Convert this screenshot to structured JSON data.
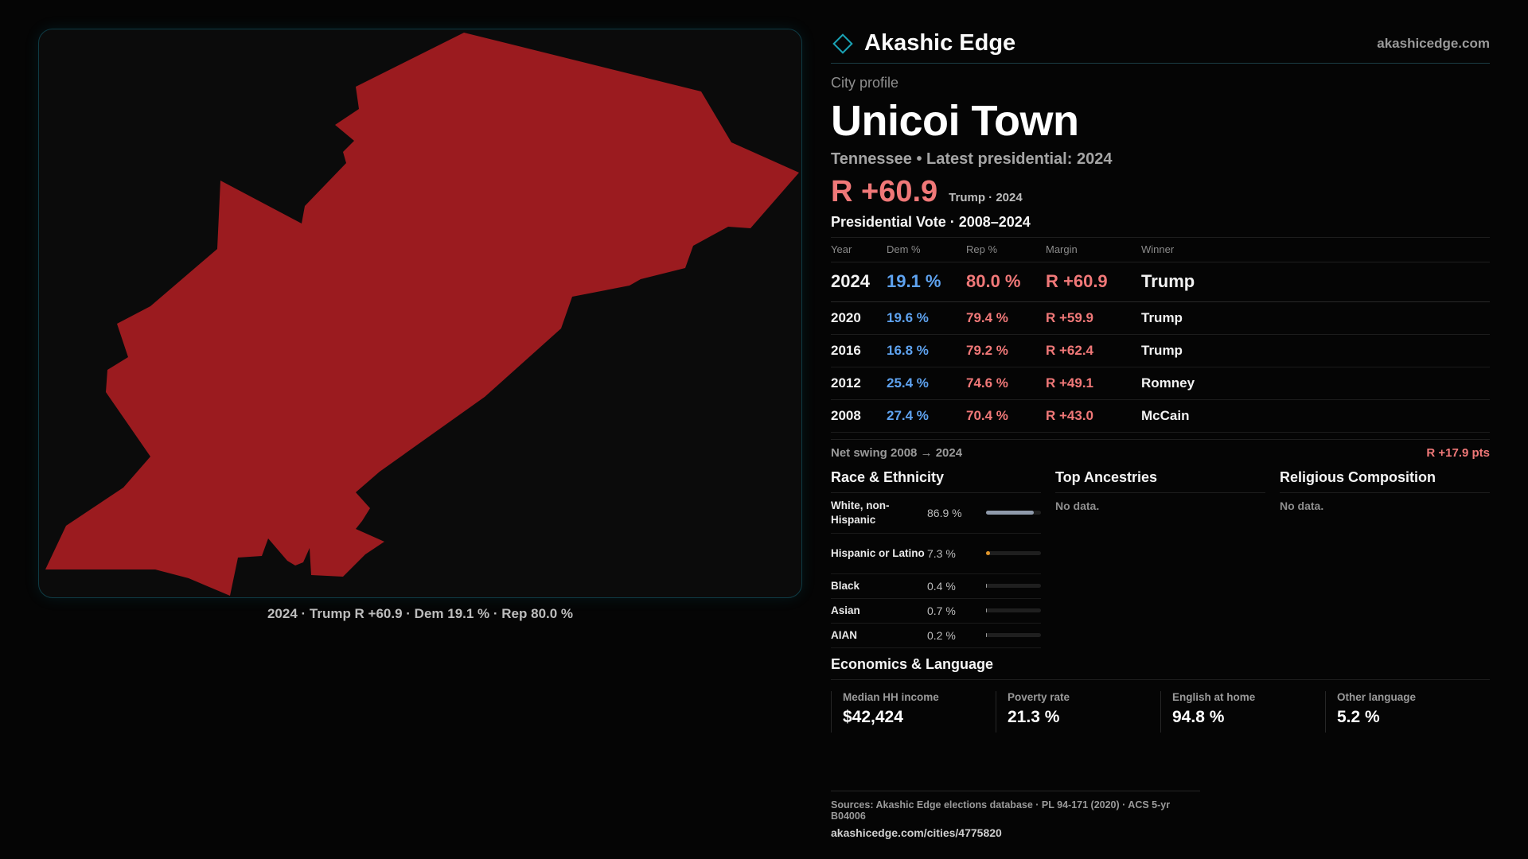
{
  "brand": {
    "name": "Akashic Edge",
    "url": "akashicedge.com",
    "icon": "diamond-icon",
    "accent": "#1aa3b5"
  },
  "map": {
    "caption": "2024 · Trump R +60.9 · Dem 19.1 % · Rep 80.0 %",
    "fill_color": "#9b1b1f"
  },
  "profile": {
    "eyebrow": "City profile",
    "name": "Unicoi Town",
    "subtitle": "Tennessee • Latest presidential: 2024",
    "headline_margin": "R +60.9",
    "headline_note": "Trump · 2024"
  },
  "votes": {
    "title": "Presidential Vote · 2008–2024",
    "headers": {
      "year": "Year",
      "dem": "Dem %",
      "rep": "Rep %",
      "margin": "Margin",
      "winner": "Winner"
    },
    "rows": [
      {
        "year": "2024",
        "dem": "19.1 %",
        "rep": "80.0 %",
        "margin": "R +60.9",
        "winner": "Trump"
      },
      {
        "year": "2020",
        "dem": "19.6 %",
        "rep": "79.4 %",
        "margin": "R +59.9",
        "winner": "Trump"
      },
      {
        "year": "2016",
        "dem": "16.8 %",
        "rep": "79.2 %",
        "margin": "R +62.4",
        "winner": "Trump"
      },
      {
        "year": "2012",
        "dem": "25.4 %",
        "rep": "74.6 %",
        "margin": "R +49.1",
        "winner": "Romney"
      },
      {
        "year": "2008",
        "dem": "27.4 %",
        "rep": "70.4 %",
        "margin": "R +43.0",
        "winner": "McCain"
      }
    ],
    "swing_label": "Net swing 2008 → 2024",
    "swing_value": "R +17.9 pts"
  },
  "race": {
    "title": "Race & Ethnicity",
    "rows": [
      {
        "name": "White, non-Hispanic",
        "pct": "86.9 %",
        "share": 0.869,
        "color": "#8f9aab"
      },
      {
        "name": "Hispanic or Latino",
        "pct": "7.3 %",
        "share": 0.073,
        "color": "#e0952a"
      },
      {
        "name": "Black",
        "pct": "0.4 %",
        "share": 0.004,
        "color": "#9a9a9a"
      },
      {
        "name": "Asian",
        "pct": "0.7 %",
        "share": 0.007,
        "color": "#9a9a9a"
      },
      {
        "name": "AIAN",
        "pct": "0.2 %",
        "share": 0.002,
        "color": "#9a9a9a"
      }
    ]
  },
  "ancestries": {
    "title": "Top Ancestries",
    "empty": "No data."
  },
  "religion": {
    "title": "Religious Composition",
    "empty": "No data."
  },
  "economics": {
    "title": "Economics & Language",
    "cells": [
      {
        "label": "Median HH income",
        "value": "$42,424"
      },
      {
        "label": "Poverty rate",
        "value": "21.3 %"
      },
      {
        "label": "English at home",
        "value": "94.8 %"
      },
      {
        "label": "Other language",
        "value": "5.2 %"
      }
    ]
  },
  "sources": {
    "text": "Sources: Akashic Edge elections database · PL 94-171 (2020) · ACS 5-yr B04006",
    "url": "akashicedge.com/cities/4775820"
  }
}
